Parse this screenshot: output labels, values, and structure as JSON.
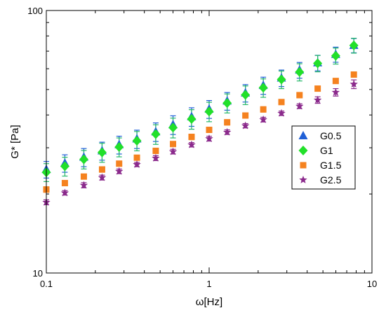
{
  "chart_data": {
    "type": "scatter",
    "xlabel": "ω[Hz]",
    "ylabel": "G* [Pa]",
    "xscale": "log",
    "yscale": "log",
    "xlim": [
      0.1,
      10
    ],
    "ylim": [
      10,
      100
    ],
    "xticks": [
      {
        "value": 0.1,
        "label": "0.1"
      },
      {
        "value": 1,
        "label": "1"
      },
      {
        "value": 10,
        "label": "10"
      }
    ],
    "yticks": [
      {
        "value": 10,
        "label": "10"
      },
      {
        "value": 100,
        "label": "100"
      }
    ],
    "grid": false,
    "legend_position": "right",
    "x": [
      0.1,
      0.13,
      0.17,
      0.22,
      0.28,
      0.36,
      0.47,
      0.6,
      0.78,
      1.0,
      1.29,
      1.67,
      2.15,
      2.78,
      3.59,
      4.64,
      5.99,
      7.74
    ],
    "series": [
      {
        "name": "G0.5",
        "color": "#1f5fd6",
        "marker": "triangle",
        "values": [
          24.8,
          26.2,
          27.6,
          29.2,
          30.8,
          32.4,
          34.5,
          36.7,
          39.4,
          42.1,
          45.2,
          48.5,
          51.8,
          55.3,
          59.3,
          63.2,
          68.0,
          73.6
        ],
        "errors": [
          1.8,
          2.0,
          2.2,
          2.3,
          2.4,
          2.6,
          2.8,
          3.0,
          3.2,
          3.3,
          3.5,
          3.7,
          3.9,
          4.0,
          4.1,
          4.3,
          4.5,
          4.6
        ]
      },
      {
        "name": "G1",
        "color": "#22e02a",
        "errorColor": "#26b86a",
        "marker": "diamond",
        "values": [
          24.2,
          25.5,
          27.1,
          28.8,
          30.2,
          31.9,
          33.8,
          35.8,
          38.6,
          41.2,
          44.4,
          47.7,
          50.8,
          54.6,
          58.3,
          62.9,
          67.2,
          73.6
        ],
        "errors": [
          1.9,
          2.1,
          2.2,
          2.4,
          2.5,
          2.7,
          2.9,
          3.1,
          3.3,
          3.5,
          3.7,
          3.9,
          4.1,
          4.2,
          4.4,
          4.5,
          4.7,
          4.8
        ]
      },
      {
        "name": "G1.5",
        "color": "#f5821f",
        "marker": "square",
        "values": [
          20.8,
          22.0,
          23.3,
          24.8,
          26.1,
          27.5,
          29.2,
          31.0,
          33.0,
          35.1,
          37.5,
          39.8,
          42.0,
          44.8,
          47.6,
          50.4,
          53.9,
          57.0
        ],
        "errors": [
          0.5,
          0.5,
          0.5,
          0.6,
          0.6,
          0.6,
          0.7,
          0.7,
          0.8,
          0.8,
          0.9,
          0.9,
          1.0,
          1.0,
          1.1,
          1.1,
          1.2,
          1.3
        ]
      },
      {
        "name": "G2.5",
        "color": "#8b2a8c",
        "marker": "star",
        "values": [
          18.6,
          20.2,
          21.6,
          23.1,
          24.4,
          25.9,
          27.4,
          29.0,
          30.8,
          32.5,
          34.4,
          36.4,
          38.4,
          40.6,
          43.2,
          45.6,
          48.8,
          52.4
        ],
        "errors": [
          0.4,
          0.4,
          0.5,
          0.5,
          0.5,
          0.5,
          0.6,
          0.6,
          0.6,
          0.7,
          0.7,
          0.7,
          0.8,
          0.8,
          0.9,
          1.3,
          1.6,
          2.0
        ]
      }
    ]
  }
}
